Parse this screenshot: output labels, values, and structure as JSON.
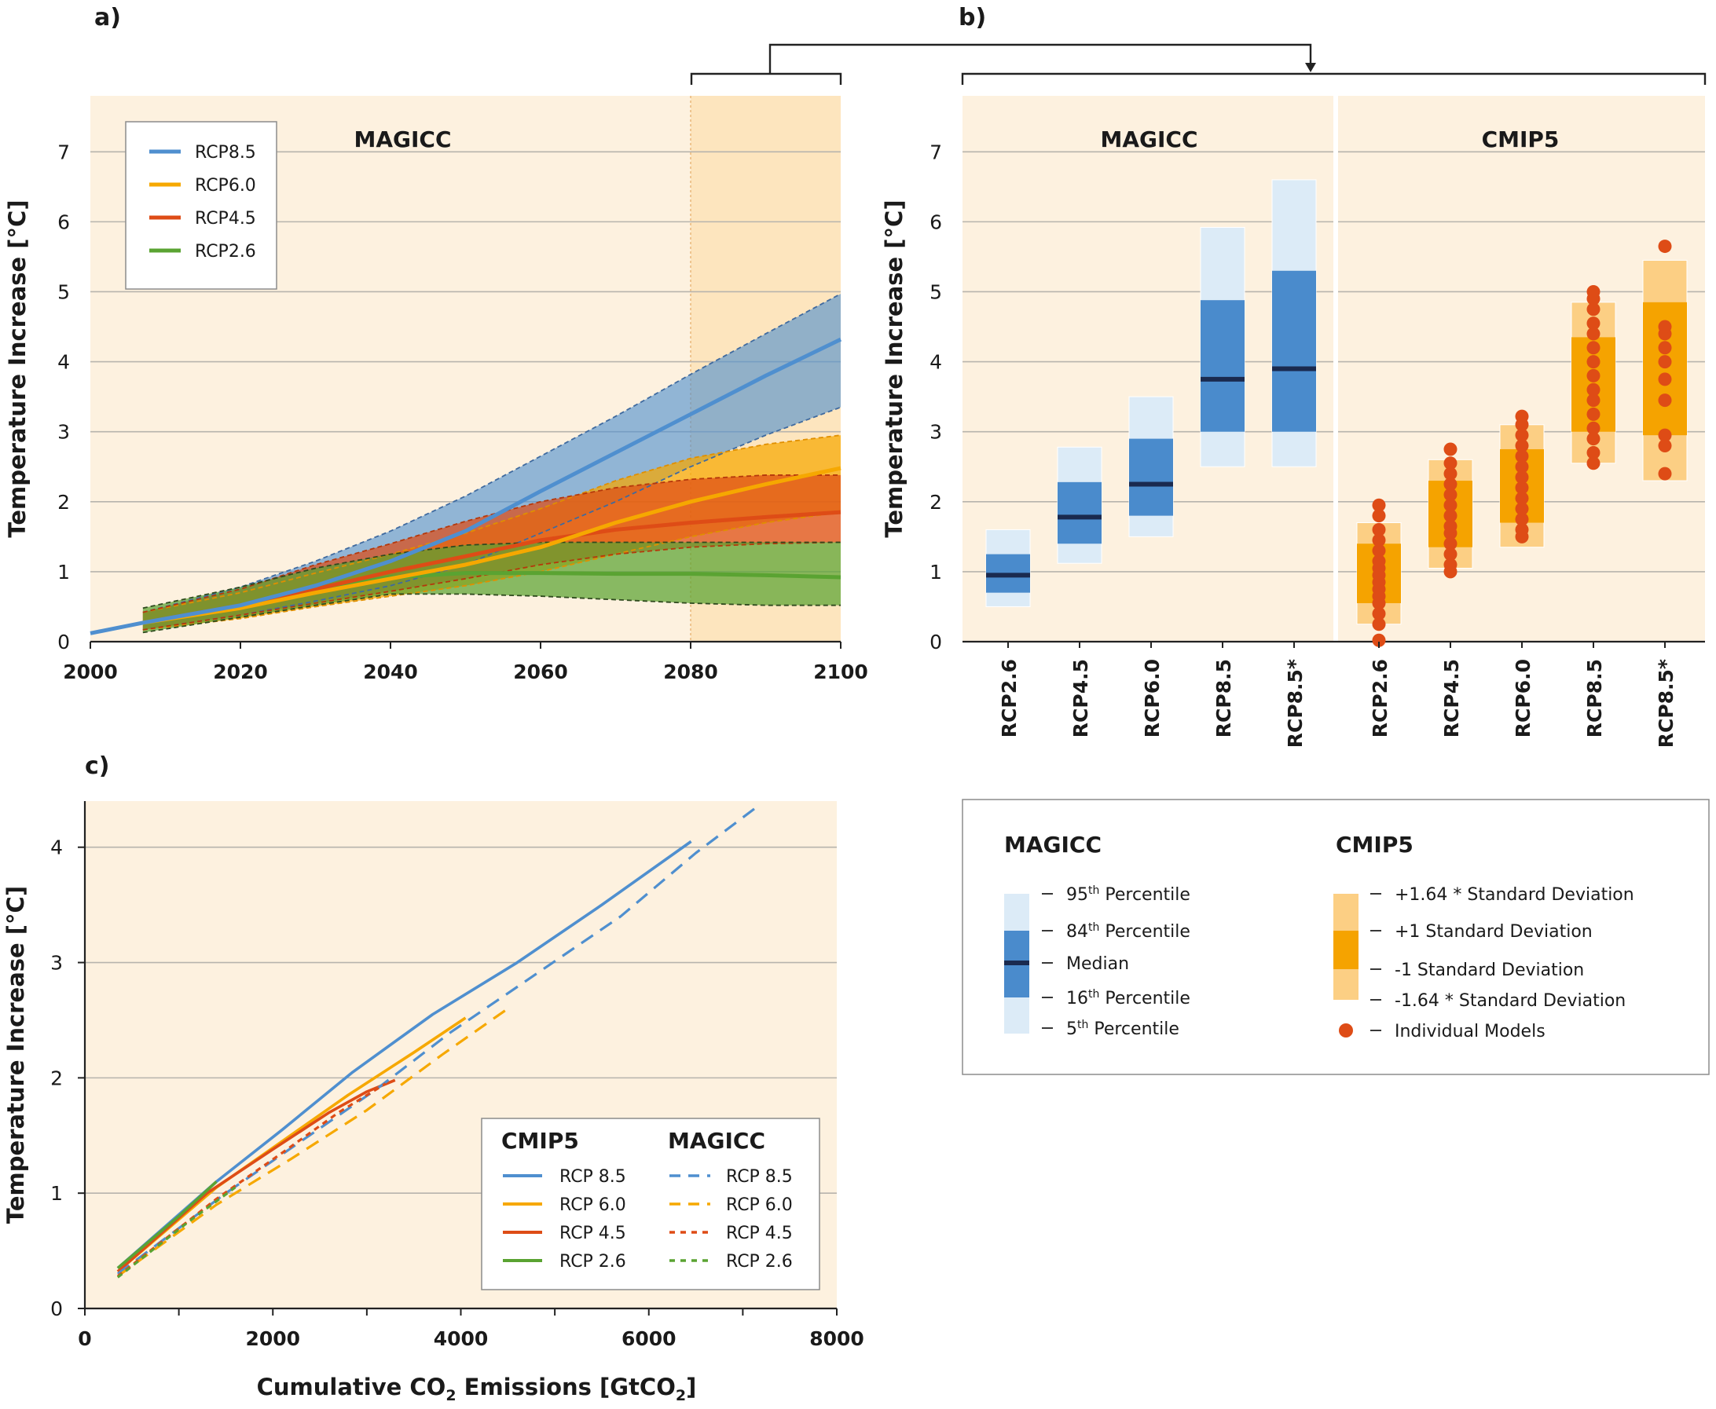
{
  "colors": {
    "rcp85": "#4f8fcf",
    "rcp60": "#f6a800",
    "rcp45": "#de4c16",
    "rcp26": "#5aa332",
    "magicc_light": "#dcebf7",
    "magicc_mid": "#4a8bcc",
    "magicc_median": "#1a2a4f",
    "cmip_light": "#fccf84",
    "cmip_mid": "#f5a300",
    "cmip_dot": "#de4c16",
    "panel_bg": "#fdf1df"
  },
  "panels": {
    "a": {
      "label": "a)"
    },
    "b": {
      "label": "b)"
    },
    "c": {
      "label": "c)"
    }
  },
  "chart_data": [
    {
      "panel": "a",
      "type": "area",
      "title": "MAGICC",
      "xlabel": "",
      "ylabel": "Temperature Increase [°C]",
      "xlim": [
        2000,
        2100
      ],
      "ylim": [
        0,
        7.8
      ],
      "xticks": [
        "2000",
        "2020",
        "2040",
        "2060",
        "2080",
        "2100"
      ],
      "yticks": [
        "0",
        "1",
        "2",
        "3",
        "4",
        "5",
        "6",
        "7"
      ],
      "highlight_period": [
        2080,
        2100
      ],
      "grid": true,
      "legend_position": "top-left",
      "x": [
        2007,
        2020,
        2030,
        2040,
        2050,
        2060,
        2070,
        2080,
        2090,
        2100
      ],
      "series": [
        {
          "name": "RCP8.5",
          "color_key": "rcp85",
          "median": [
            0.27,
            0.52,
            0.8,
            1.15,
            1.58,
            2.15,
            2.7,
            3.25,
            3.8,
            4.32
          ],
          "upper": [
            0.42,
            0.78,
            1.15,
            1.58,
            2.08,
            2.65,
            3.22,
            3.82,
            4.4,
            4.97
          ],
          "lower": [
            0.17,
            0.38,
            0.58,
            0.8,
            1.1,
            1.55,
            2.0,
            2.5,
            2.95,
            3.35
          ]
        },
        {
          "name": "RCP6.0",
          "color_key": "rcp60",
          "median": [
            0.27,
            0.48,
            0.7,
            0.9,
            1.1,
            1.35,
            1.7,
            2.0,
            2.25,
            2.48
          ],
          "upper": [
            0.42,
            0.7,
            0.98,
            1.25,
            1.55,
            1.9,
            2.3,
            2.62,
            2.82,
            2.95
          ],
          "lower": [
            0.17,
            0.33,
            0.5,
            0.65,
            0.8,
            1.0,
            1.25,
            1.5,
            1.7,
            1.85
          ]
        },
        {
          "name": "RCP4.5",
          "color_key": "rcp45",
          "median": [
            0.27,
            0.52,
            0.75,
            1.0,
            1.22,
            1.45,
            1.6,
            1.7,
            1.78,
            1.85
          ],
          "upper": [
            0.42,
            0.75,
            1.1,
            1.4,
            1.72,
            2.0,
            2.2,
            2.32,
            2.38,
            2.38
          ],
          "lower": [
            0.17,
            0.38,
            0.55,
            0.72,
            0.9,
            1.1,
            1.25,
            1.35,
            1.4,
            1.42
          ]
        },
        {
          "name": "RCP2.6",
          "color_key": "rcp26",
          "median": [
            0.27,
            0.52,
            0.75,
            0.92,
            0.98,
            0.98,
            0.97,
            0.97,
            0.95,
            0.92
          ],
          "upper": [
            0.48,
            0.78,
            1.05,
            1.25,
            1.38,
            1.42,
            1.42,
            1.42,
            1.42,
            1.42
          ],
          "lower": [
            0.13,
            0.35,
            0.52,
            0.68,
            0.68,
            0.65,
            0.6,
            0.55,
            0.52,
            0.52
          ]
        }
      ]
    },
    {
      "panel": "b",
      "type": "bar",
      "ylabel": "Temperature Increase [°C]",
      "ylim": [
        0,
        7.8
      ],
      "yticks": [
        "0",
        "1",
        "2",
        "3",
        "4",
        "5",
        "6",
        "7"
      ],
      "grid": true,
      "groups": [
        {
          "title": "MAGICC",
          "categories": [
            "RCP2.6",
            "RCP4.5",
            "RCP6.0",
            "RCP8.5",
            "RCP8.5*"
          ],
          "p5": [
            0.5,
            1.12,
            1.5,
            2.5,
            2.5
          ],
          "p16": [
            0.7,
            1.4,
            1.8,
            3.0,
            3.0
          ],
          "median": [
            0.95,
            1.78,
            2.25,
            3.75,
            3.9
          ],
          "p84": [
            1.25,
            2.28,
            2.9,
            4.88,
            5.3
          ],
          "p95": [
            1.6,
            2.78,
            3.5,
            5.92,
            6.6
          ]
        },
        {
          "title": "CMIP5",
          "categories": [
            "RCP2.6",
            "RCP4.5",
            "RCP6.0",
            "RCP8.5",
            "RCP8.5*"
          ],
          "sd_minus164": [
            0.25,
            1.05,
            1.35,
            2.55,
            2.3
          ],
          "sd_minus1": [
            0.55,
            1.35,
            1.7,
            3.0,
            2.95
          ],
          "sd_plus1": [
            1.4,
            2.3,
            2.75,
            4.35,
            4.85
          ],
          "sd_plus164": [
            1.7,
            2.6,
            3.1,
            4.85,
            5.45
          ],
          "models": [
            [
              0.02,
              0.25,
              0.4,
              0.55,
              0.65,
              0.75,
              0.85,
              0.95,
              1.05,
              1.15,
              1.3,
              1.45,
              1.6,
              1.8,
              1.95
            ],
            [
              1.0,
              1.1,
              1.25,
              1.4,
              1.55,
              1.65,
              1.8,
              1.95,
              2.1,
              2.25,
              2.4,
              2.55,
              2.75
            ],
            [
              1.5,
              1.6,
              1.75,
              1.9,
              2.05,
              2.2,
              2.35,
              2.5,
              2.65,
              2.8,
              2.95,
              3.1,
              3.22
            ],
            [
              2.55,
              2.7,
              2.9,
              3.05,
              3.25,
              3.45,
              3.6,
              3.8,
              4.0,
              4.2,
              4.4,
              4.55,
              4.75,
              4.9,
              5.0
            ],
            [
              2.4,
              2.8,
              2.95,
              3.45,
              3.75,
              4.0,
              4.2,
              4.4,
              4.5,
              5.65
            ]
          ]
        }
      ]
    },
    {
      "panel": "c",
      "type": "line",
      "xlabel": "Cumulative CO2 Emissions [GtCO2]",
      "ylabel": "Temperature Increase [°C]",
      "xlim": [
        0,
        8000
      ],
      "ylim": [
        0,
        4.4
      ],
      "xticks": [
        "0",
        "2000",
        "4000",
        "6000",
        "8000"
      ],
      "yticks": [
        "0",
        "1",
        "2",
        "3",
        "4"
      ],
      "grid": true,
      "legend_position": "bottom-right",
      "series": [
        {
          "name": "RCP 8.5",
          "source": "CMIP5",
          "color_key": "rcp85",
          "style": "solid",
          "x": [
            350,
            1400,
            2100,
            2850,
            3700,
            4600,
            5500,
            6450
          ],
          "y": [
            0.35,
            1.1,
            1.55,
            2.05,
            2.55,
            3.0,
            3.5,
            4.05
          ]
        },
        {
          "name": "RCP 6.0",
          "source": "CMIP5",
          "color_key": "rcp60",
          "style": "solid",
          "x": [
            350,
            1400,
            2100,
            2800,
            3500,
            4050
          ],
          "y": [
            0.32,
            1.05,
            1.45,
            1.85,
            2.22,
            2.52
          ]
        },
        {
          "name": "RCP 4.5",
          "source": "CMIP5",
          "color_key": "rcp45",
          "style": "solid",
          "x": [
            350,
            1300,
            2000,
            2600,
            3000,
            3300
          ],
          "y": [
            0.32,
            1.0,
            1.38,
            1.7,
            1.88,
            1.98
          ]
        },
        {
          "name": "RCP 2.6",
          "source": "CMIP5",
          "color_key": "rcp26",
          "style": "solid",
          "x": [
            350,
            1000,
            1400
          ],
          "y": [
            0.35,
            0.8,
            1.1
          ]
        },
        {
          "name": "RCP 8.5",
          "source": "MAGICC",
          "color_key": "rcp85",
          "style": "dashed",
          "x": [
            350,
            1500,
            2300,
            3100,
            3900,
            4800,
            5700,
            6500,
            7150
          ],
          "y": [
            0.3,
            1.0,
            1.45,
            1.9,
            2.4,
            2.9,
            3.4,
            3.95,
            4.35
          ]
        },
        {
          "name": "RCP 6.0",
          "source": "MAGICC",
          "color_key": "rcp60",
          "style": "dashed",
          "x": [
            350,
            1400,
            2200,
            3000,
            3800,
            4500
          ],
          "y": [
            0.28,
            0.9,
            1.3,
            1.72,
            2.2,
            2.6
          ]
        },
        {
          "name": "RCP 4.5",
          "source": "MAGICC",
          "color_key": "rcp45",
          "style": "dashed",
          "x": [
            350,
            1400,
            2100,
            2700,
            3200
          ],
          "y": [
            0.28,
            0.95,
            1.35,
            1.7,
            1.95
          ]
        },
        {
          "name": "RCP 2.6",
          "source": "MAGICC",
          "color_key": "rcp26",
          "style": "dashed",
          "x": [
            350,
            1100,
            1600
          ],
          "y": [
            0.27,
            0.75,
            1.05
          ]
        }
      ],
      "legend": {
        "col1_title": "CMIP5",
        "col2_title": "MAGICC",
        "items": [
          "RCP 8.5",
          "RCP 6.0",
          "RCP 4.5",
          "RCP 2.6"
        ]
      }
    }
  ],
  "key": {
    "magicc_title": "MAGICC",
    "cmip5_title": "CMIP5",
    "magicc_items": [
      {
        "base": "95",
        "sup": "th",
        "rest": " Percentile"
      },
      {
        "base": "84",
        "sup": "th",
        "rest": " Percentile"
      },
      {
        "base": "Median",
        "sup": "",
        "rest": ""
      },
      {
        "base": "16",
        "sup": "th",
        "rest": " Percentile"
      },
      {
        "base": "5",
        "sup": "th",
        "rest": " Percentile"
      }
    ],
    "cmip5_items": [
      "+1.64 * Standard Deviation",
      "+1 Standard Deviation",
      "-1 Standard Deviation",
      "-1.64 * Standard Deviation",
      "Individual Models"
    ]
  }
}
